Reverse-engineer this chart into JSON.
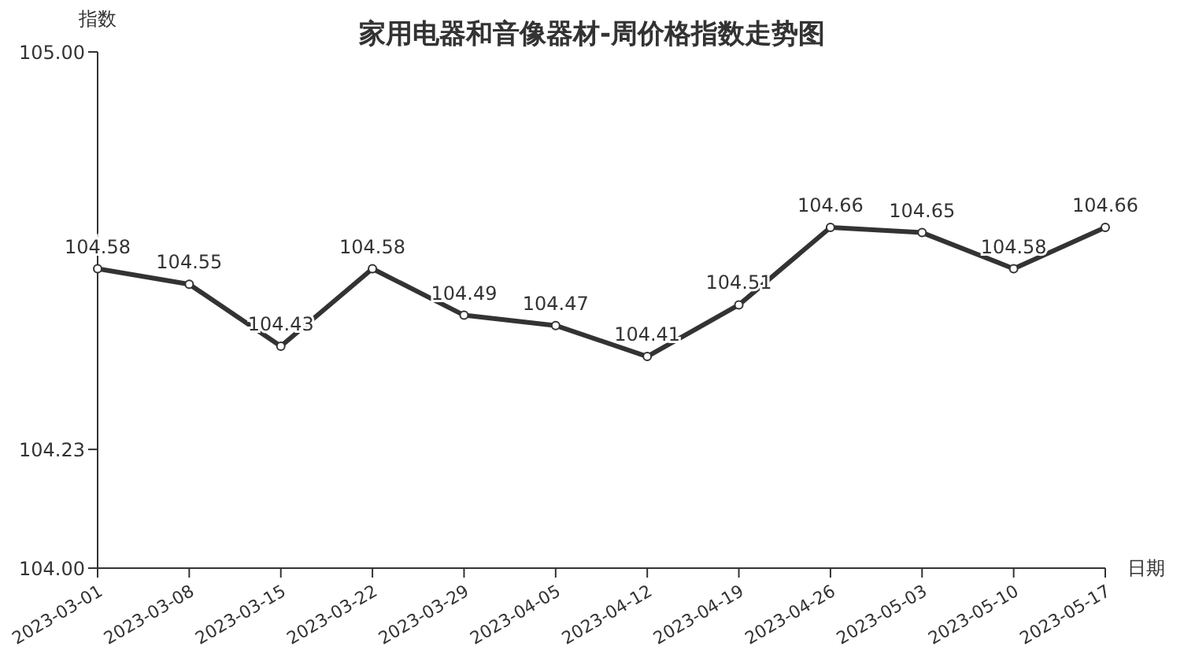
{
  "chart_data": {
    "type": "line",
    "title": "家用电器和音像器材-周价格指数走势图",
    "xlabel": "日期",
    "ylabel": "指数",
    "categories": [
      "2023-03-01",
      "2023-03-08",
      "2023-03-15",
      "2023-03-22",
      "2023-03-29",
      "2023-04-05",
      "2023-04-12",
      "2023-04-19",
      "2023-04-26",
      "2023-05-03",
      "2023-05-10",
      "2023-05-17"
    ],
    "series": [
      {
        "color": "#333333",
        "values": [
          104.58,
          104.55,
          104.43,
          104.58,
          104.49,
          104.47,
          104.41,
          104.51,
          104.66,
          104.65,
          104.58,
          104.66
        ]
      }
    ],
    "ylim": [
      104,
      105
    ],
    "yticks": [
      {
        "value": 104,
        "label": "104.00"
      },
      104.23,
      {
        "value": 105,
        "label": "105.00"
      }
    ],
    "data_labels": true,
    "marker": "circle",
    "line_style": "solid",
    "grid": false,
    "legend": false
  }
}
